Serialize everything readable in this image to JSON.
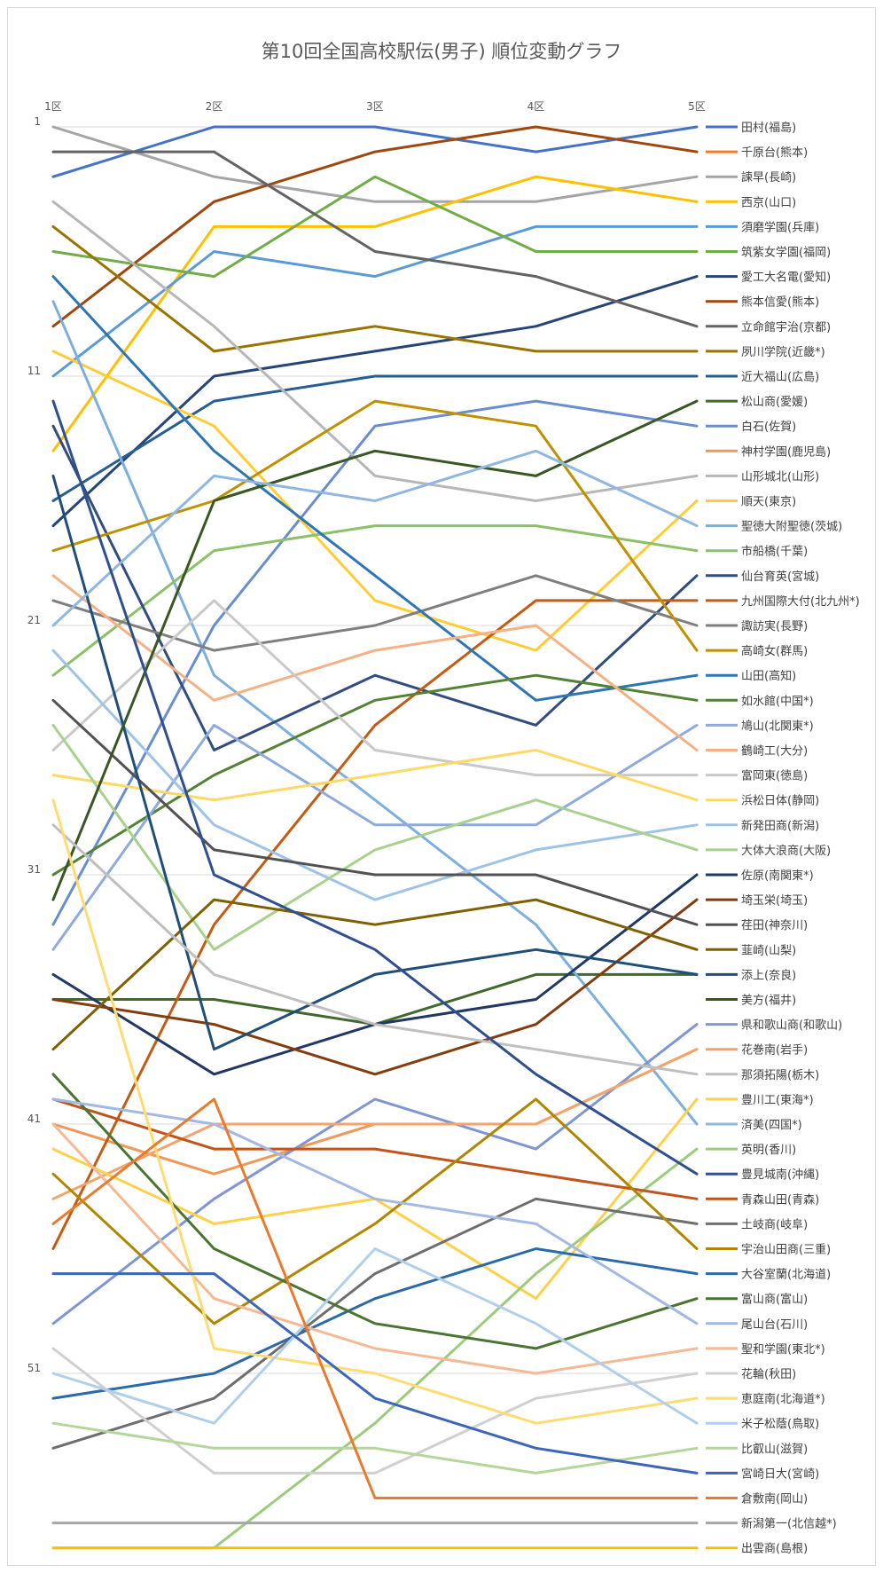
{
  "chart_data": {
    "type": "line",
    "title": "第10回全国高校駅伝(男子) 順位変動グラフ",
    "categories": [
      "1区",
      "2区",
      "3区",
      "4区",
      "5区"
    ],
    "y_ticks": [
      "1",
      "11",
      "21",
      "31",
      "41",
      "51"
    ],
    "y_axis": {
      "min": 1,
      "max": 58,
      "reversed": true
    },
    "grid": true,
    "legend_position": "right",
    "series": [
      {
        "name": "田村(福島)",
        "color": "#4472c4",
        "values": [
          3,
          1,
          1,
          2,
          1
        ]
      },
      {
        "name": "千原台(熊本)",
        "color": "#ed7d31",
        "values": [
          null,
          null,
          null,
          null,
          null
        ]
      },
      {
        "name": "諫早(長崎)",
        "color": "#a5a5a5",
        "values": [
          1,
          3,
          4,
          4,
          3
        ]
      },
      {
        "name": "西京(山口)",
        "color": "#ffc000",
        "values": [
          14,
          5,
          5,
          3,
          4
        ]
      },
      {
        "name": "須磨学園(兵庫)",
        "color": "#5b9bd5",
        "values": [
          11,
          6,
          7,
          5,
          5
        ]
      },
      {
        "name": "筑紫女学園(福岡)",
        "color": "#70ad47",
        "values": [
          6,
          7,
          3,
          6,
          6
        ]
      },
      {
        "name": "愛工大名電(愛知)",
        "color": "#264478",
        "values": [
          17,
          11,
          10,
          9,
          7
        ]
      },
      {
        "name": "熊本信愛(熊本)",
        "color": "#9e480e",
        "values": [
          9,
          4,
          2,
          1,
          2
        ]
      },
      {
        "name": "立命館宇治(京都)",
        "color": "#636363",
        "values": [
          2,
          2,
          6,
          7,
          9
        ]
      },
      {
        "name": "夙川学院(近畿*)",
        "color": "#997300",
        "values": [
          5,
          10,
          9,
          10,
          10
        ]
      },
      {
        "name": "近大福山(広島)",
        "color": "#255e91",
        "values": [
          16,
          12,
          11,
          11,
          11
        ]
      },
      {
        "name": "松山商(愛媛)",
        "color": "#43682b",
        "values": [
          36,
          36,
          37,
          35,
          35
        ]
      },
      {
        "name": "白石(佐賀)",
        "color": "#698ed0",
        "values": [
          33,
          21,
          13,
          12,
          13
        ]
      },
      {
        "name": "神村学園(鹿児島)",
        "color": "#f1975a",
        "values": [
          41,
          43,
          41,
          41,
          38
        ]
      },
      {
        "name": "山形城北(山形)",
        "color": "#b7b7b7",
        "values": [
          4,
          9,
          15,
          16,
          15
        ]
      },
      {
        "name": "順天(東京)",
        "color": "#ffcd33",
        "values": [
          10,
          13,
          20,
          22,
          16
        ]
      },
      {
        "name": "聖徳大附聖徳(茨城)",
        "color": "#7cafdd",
        "values": [
          8,
          23,
          28,
          33,
          41
        ]
      },
      {
        "name": "市船橋(千葉)",
        "color": "#8cc168",
        "values": [
          23,
          18,
          17,
          17,
          18
        ]
      },
      {
        "name": "仙台育英(宮城)",
        "color": "#314c7e",
        "values": [
          13,
          26,
          23,
          25,
          19
        ]
      },
      {
        "name": "九州国際大付(北九州*)",
        "color": "#c55a11",
        "values": [
          46,
          33,
          25,
          20,
          20
        ]
      },
      {
        "name": "諏訪実(長野)",
        "color": "#7f7f7f",
        "values": [
          20,
          22,
          21,
          19,
          21
        ]
      },
      {
        "name": "高崎女(群馬)",
        "color": "#bf9000",
        "values": [
          18,
          16,
          12,
          13,
          22
        ]
      },
      {
        "name": "山田(高知)",
        "color": "#2e75b6",
        "values": [
          7,
          14,
          19,
          24,
          23
        ]
      },
      {
        "name": "如水館(中国*)",
        "color": "#548235",
        "values": [
          31,
          27,
          24,
          23,
          24
        ]
      },
      {
        "name": "鳩山(北関東*)",
        "color": "#8faadc",
        "values": [
          34,
          25,
          29,
          29,
          25
        ]
      },
      {
        "name": "鶴崎工(大分)",
        "color": "#f4b183",
        "values": [
          19,
          24,
          22,
          21,
          26
        ]
      },
      {
        "name": "富岡東(徳島)",
        "color": "#c9c9c9",
        "values": [
          26,
          20,
          26,
          27,
          27
        ]
      },
      {
        "name": "浜松日体(静岡)",
        "color": "#ffd966",
        "values": [
          27,
          28,
          27,
          26,
          28
        ]
      },
      {
        "name": "新発田商(新潟)",
        "color": "#9dc3e6",
        "values": [
          22,
          29,
          32,
          30,
          29
        ]
      },
      {
        "name": "大体大浪商(大阪)",
        "color": "#a9d18e",
        "values": [
          25,
          34,
          30,
          28,
          30
        ]
      },
      {
        "name": "佐原(南関東*)",
        "color": "#203864",
        "values": [
          35,
          39,
          37,
          36,
          31
        ]
      },
      {
        "name": "埼玉栄(埼玉)",
        "color": "#843c0c",
        "values": [
          36,
          37,
          39,
          37,
          32
        ]
      },
      {
        "name": "荏田(神奈川)",
        "color": "#525252",
        "values": [
          24,
          30,
          31,
          31,
          33
        ]
      },
      {
        "name": "韮崎(山梨)",
        "color": "#7f6000",
        "values": [
          38,
          32,
          33,
          32,
          34
        ]
      },
      {
        "name": "添上(奈良)",
        "color": "#1f4e79",
        "values": [
          15,
          38,
          35,
          34,
          35
        ]
      },
      {
        "name": "美方(福井)",
        "color": "#385723",
        "values": [
          32,
          16,
          14,
          15,
          12
        ]
      },
      {
        "name": "県和歌山商(和歌山)",
        "color": "#7f96d2",
        "values": [
          49,
          44,
          40,
          42,
          37
        ]
      },
      {
        "name": "花巻南(岩手)",
        "color": "#f4a36c",
        "values": [
          44,
          41,
          41,
          41,
          38
        ]
      },
      {
        "name": "那須拓陽(栃木)",
        "color": "#bfbfbf",
        "values": [
          29,
          35,
          37,
          38,
          39
        ]
      },
      {
        "name": "豊川工(東海*)",
        "color": "#ffd04a",
        "values": [
          42,
          45,
          44,
          48,
          40
        ]
      },
      {
        "name": "済美(四国*)",
        "color": "#8fb7e2",
        "values": [
          21,
          15,
          16,
          14,
          17
        ]
      },
      {
        "name": "英明(香川)",
        "color": "#9ccb7b",
        "values": [
          58,
          58,
          53,
          47,
          42
        ]
      },
      {
        "name": "豊見城南(沖縄)",
        "color": "#2f4f8f",
        "values": [
          12,
          31,
          34,
          39,
          43
        ]
      },
      {
        "name": "青森山田(青森)",
        "color": "#c0541a",
        "values": [
          40,
          42,
          42,
          43,
          44
        ]
      },
      {
        "name": "土岐商(岐阜)",
        "color": "#6e6e6e",
        "values": [
          54,
          52,
          47,
          44,
          45
        ]
      },
      {
        "name": "宇治山田商(三重)",
        "color": "#b08600",
        "values": [
          43,
          49,
          45,
          40,
          46
        ]
      },
      {
        "name": "大谷室蘭(北海道)",
        "color": "#2a6aa8",
        "values": [
          52,
          51,
          48,
          46,
          47
        ]
      },
      {
        "name": "富山商(富山)",
        "color": "#4a7530",
        "values": [
          39,
          46,
          49,
          50,
          48
        ]
      },
      {
        "name": "尾山台(石川)",
        "color": "#a3b8e3",
        "values": [
          40,
          41,
          44,
          45,
          49
        ]
      },
      {
        "name": "聖和学園(東北*)",
        "color": "#f5b994",
        "values": [
          41,
          48,
          50,
          51,
          50
        ]
      },
      {
        "name": "花輪(秋田)",
        "color": "#d0d0d0",
        "values": [
          50,
          55,
          55,
          52,
          51
        ]
      },
      {
        "name": "恵庭南(北海道*)",
        "color": "#ffdc73",
        "values": [
          28,
          50,
          51,
          53,
          52
        ]
      },
      {
        "name": "米子松蔭(鳥取)",
        "color": "#b0cfeb",
        "values": [
          51,
          53,
          46,
          49,
          53
        ]
      },
      {
        "name": "比叡山(滋賀)",
        "color": "#b5d69a",
        "values": [
          53,
          54,
          54,
          55,
          54
        ]
      },
      {
        "name": "宮崎日大(宮崎)",
        "color": "#3d66b8",
        "values": [
          47,
          47,
          52,
          54,
          55
        ]
      },
      {
        "name": "倉敷南(岡山)",
        "color": "#e97a2e",
        "values": [
          45,
          40,
          56,
          56,
          56
        ]
      },
      {
        "name": "新潟第一(北信越*)",
        "color": "#a6a6a6",
        "values": [
          57,
          57,
          57,
          57,
          57
        ]
      },
      {
        "name": "出雲商(島根)",
        "color": "#ffbf00",
        "values": [
          58,
          58,
          58,
          58,
          58
        ]
      }
    ]
  }
}
